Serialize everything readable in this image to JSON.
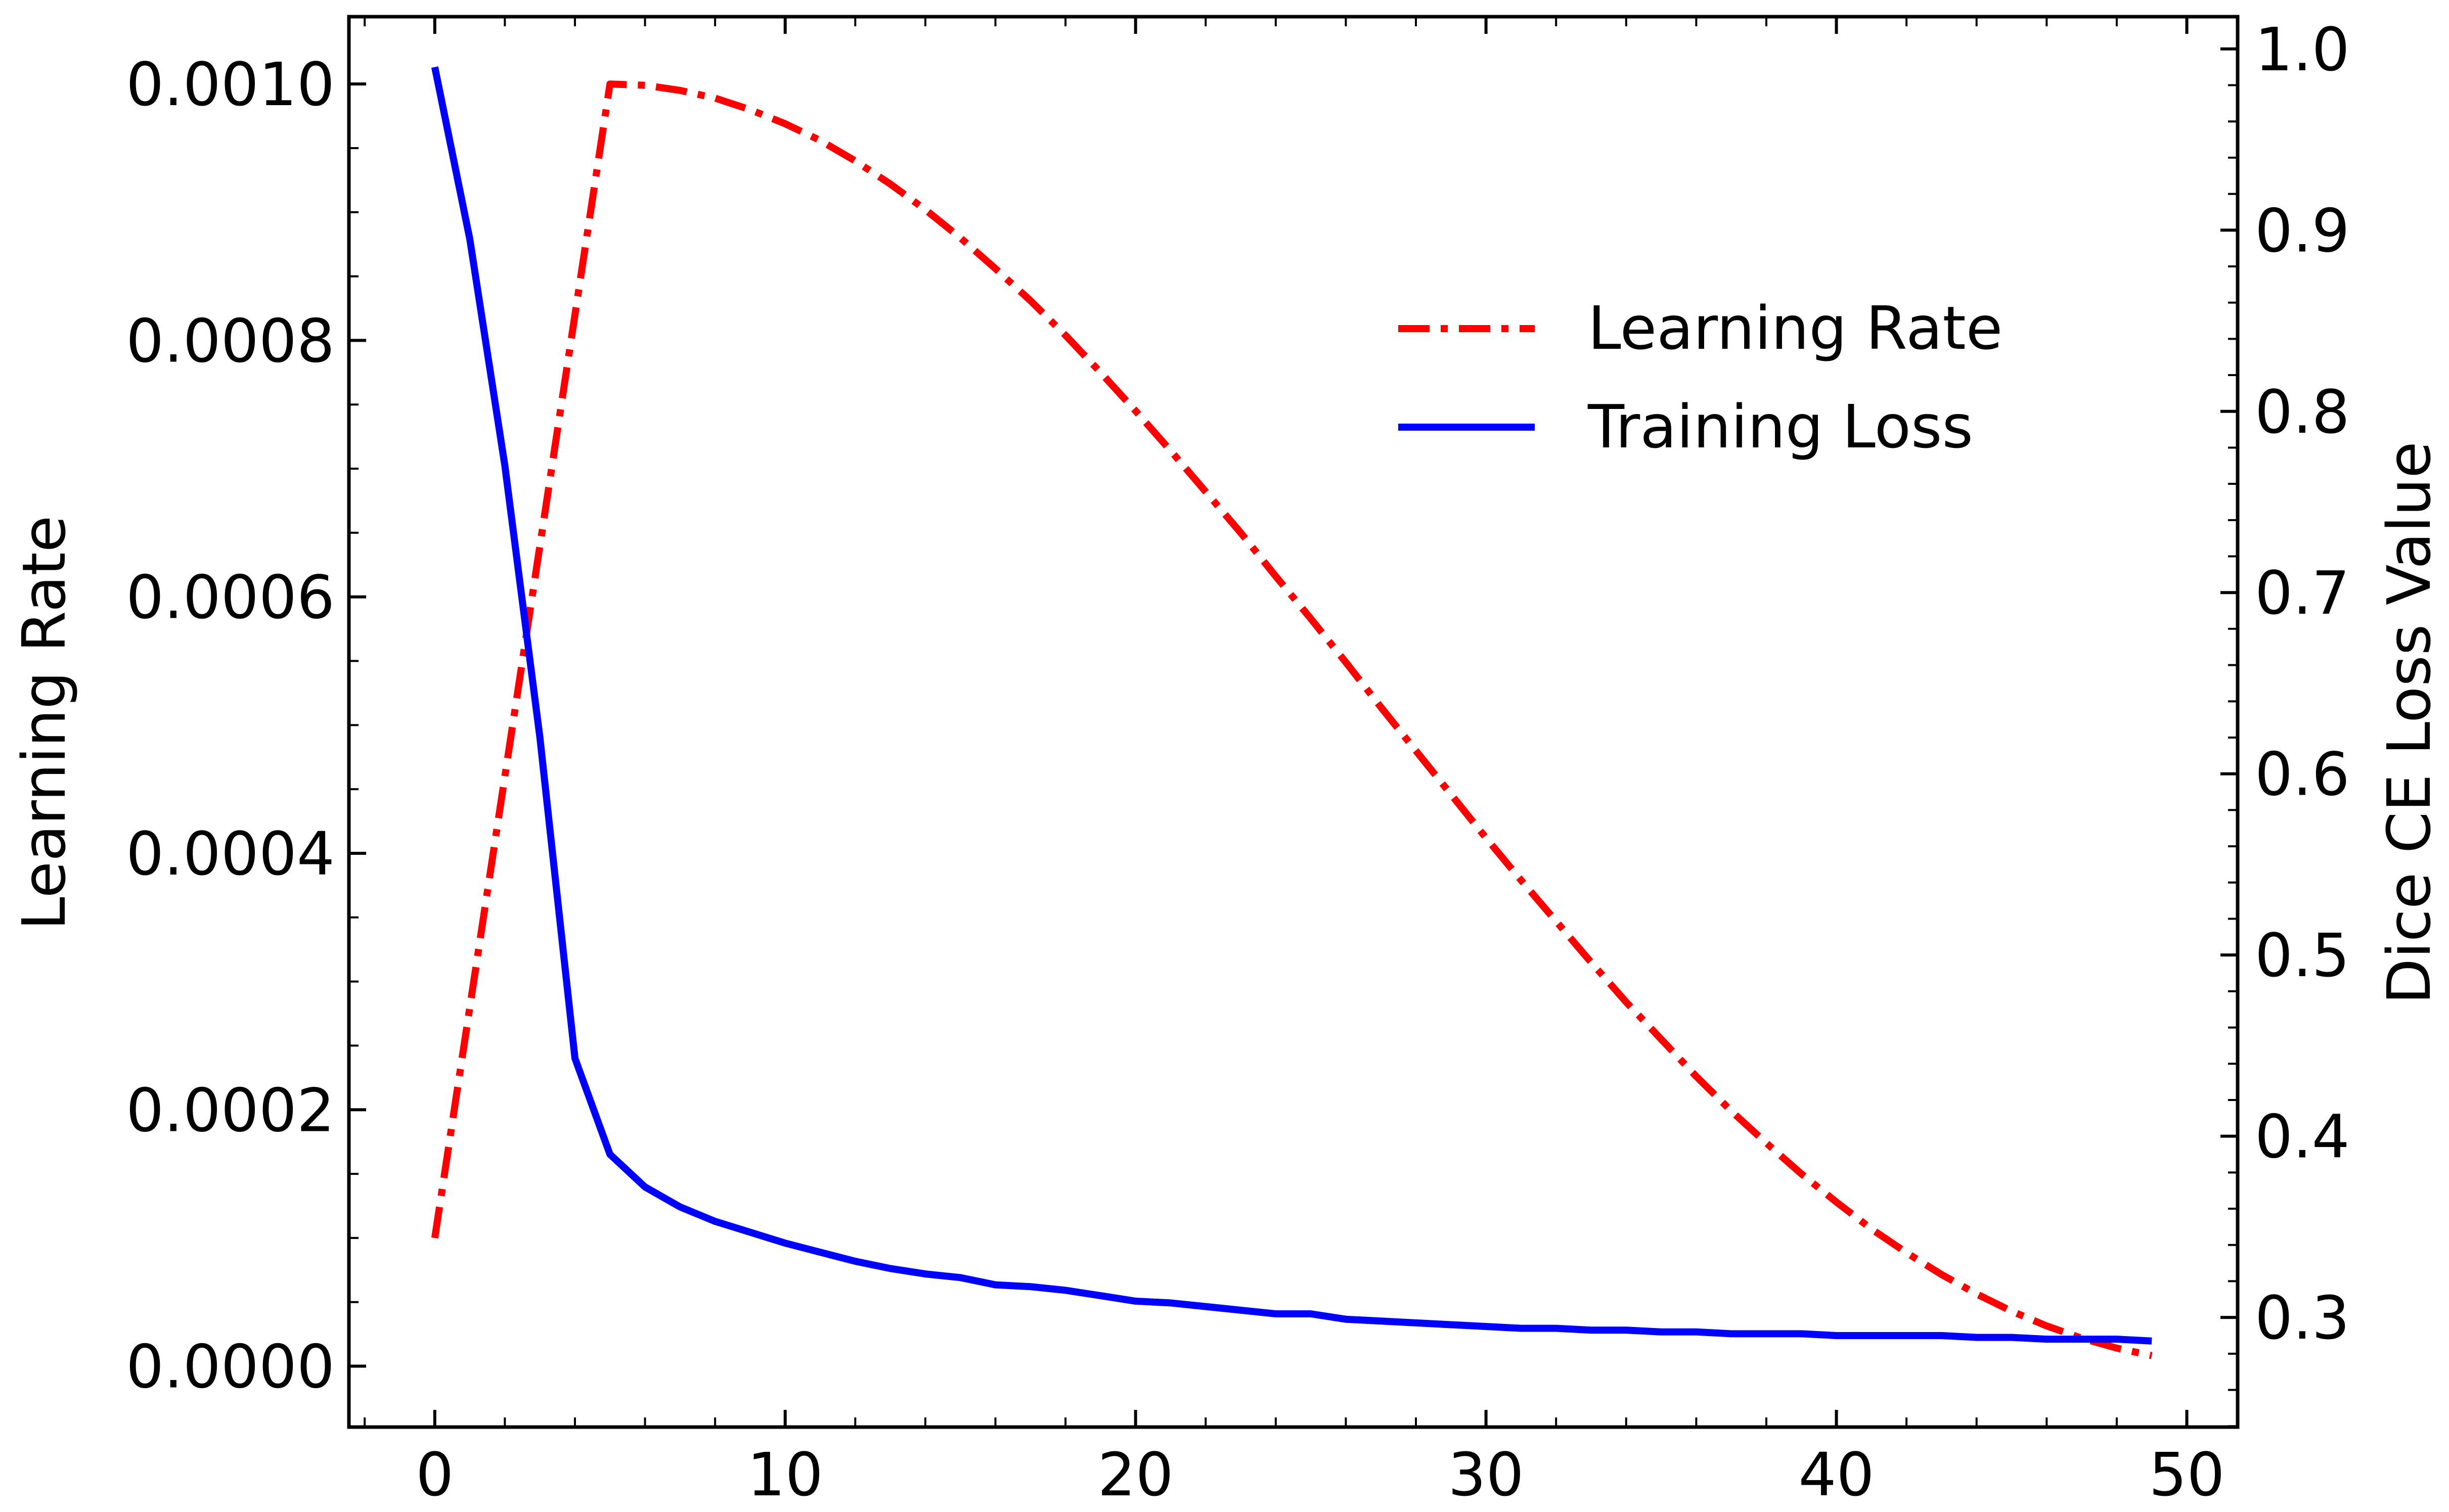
{
  "chart_data": {
    "type": "line",
    "title": "",
    "xlabel": "",
    "ylabel_left": "Learning Rate",
    "ylabel_right": "Dice CE Loss Value",
    "xlim": [
      -2.45,
      51.45
    ],
    "ylim_left": [
      -4.75e-05,
      0.0010525
    ],
    "ylim_right": [
      0.2395,
      1.0178
    ],
    "x_ticks": [
      0,
      10,
      20,
      30,
      40,
      50
    ],
    "x_tick_labels": [
      "0",
      "10",
      "20",
      "30",
      "40",
      "50"
    ],
    "y_left_ticks": [
      0.0,
      0.0002,
      0.0004,
      0.0006,
      0.0008,
      0.001
    ],
    "y_left_tick_labels": [
      "0.0000",
      "0.0002",
      "0.0004",
      "0.0006",
      "0.0008",
      "0.0010"
    ],
    "y_right_ticks": [
      0.3,
      0.4,
      0.5,
      0.6,
      0.7,
      0.8,
      0.9,
      1.0
    ],
    "y_right_tick_labels": [
      "0.3",
      "0.4",
      "0.5",
      "0.6",
      "0.7",
      "0.8",
      "0.9",
      "1.0"
    ],
    "legend_position": "upper-right",
    "grid": false,
    "series": [
      {
        "name": "Learning Rate",
        "axis": "left",
        "color": "#ff0000",
        "style": "dashdot",
        "x": [
          0,
          1,
          2,
          3,
          4,
          5,
          6,
          7,
          8,
          9,
          10,
          11,
          12,
          13,
          14,
          15,
          16,
          17,
          18,
          19,
          20,
          21,
          22,
          23,
          24,
          25,
          26,
          27,
          28,
          29,
          30,
          31,
          32,
          33,
          34,
          35,
          36,
          37,
          38,
          39,
          40,
          41,
          42,
          43,
          44,
          45,
          46,
          47,
          48,
          49
        ],
        "values": [
          0.0001,
          0.00028,
          0.00046,
          0.00064,
          0.00082,
          0.001,
          0.000999,
          0.000995,
          0.000989,
          0.00098,
          0.000969,
          0.000956,
          0.00094,
          0.000922,
          0.000902,
          0.00088,
          0.000856,
          0.000831,
          0.000804,
          0.000775,
          0.000745,
          0.000714,
          0.000682,
          0.00065,
          0.000616,
          0.000583,
          0.000549,
          0.000514,
          0.00048,
          0.000446,
          0.000412,
          0.000379,
          0.000347,
          0.000315,
          0.000284,
          0.000255,
          0.000226,
          0.000199,
          0.000174,
          0.00015,
          0.000128,
          0.000107,
          8.85e-05,
          7.15e-05,
          5.63e-05,
          4.29e-05,
          3.14e-05,
          2.18e-05,
          1.41e-05,
          8.2e-06
        ]
      },
      {
        "name": "Training Loss",
        "axis": "right",
        "color": "#0000ff",
        "style": "solid",
        "x": [
          0,
          1,
          2,
          3,
          4,
          5,
          6,
          7,
          8,
          9,
          10,
          11,
          12,
          13,
          14,
          15,
          16,
          17,
          18,
          19,
          20,
          21,
          22,
          23,
          24,
          25,
          26,
          27,
          28,
          29,
          30,
          31,
          32,
          33,
          34,
          35,
          36,
          37,
          38,
          39,
          40,
          41,
          42,
          43,
          44,
          45,
          46,
          47,
          48,
          49
        ],
        "values": [
          0.99,
          0.895,
          0.77,
          0.62,
          0.443,
          0.39,
          0.372,
          0.361,
          0.353,
          0.347,
          0.341,
          0.336,
          0.331,
          0.327,
          0.324,
          0.322,
          0.318,
          0.317,
          0.315,
          0.312,
          0.309,
          0.308,
          0.306,
          0.304,
          0.302,
          0.302,
          0.299,
          0.298,
          0.297,
          0.296,
          0.295,
          0.294,
          0.294,
          0.293,
          0.293,
          0.292,
          0.292,
          0.291,
          0.291,
          0.291,
          0.29,
          0.29,
          0.29,
          0.29,
          0.289,
          0.289,
          0.288,
          0.288,
          0.288,
          0.287
        ]
      }
    ]
  }
}
